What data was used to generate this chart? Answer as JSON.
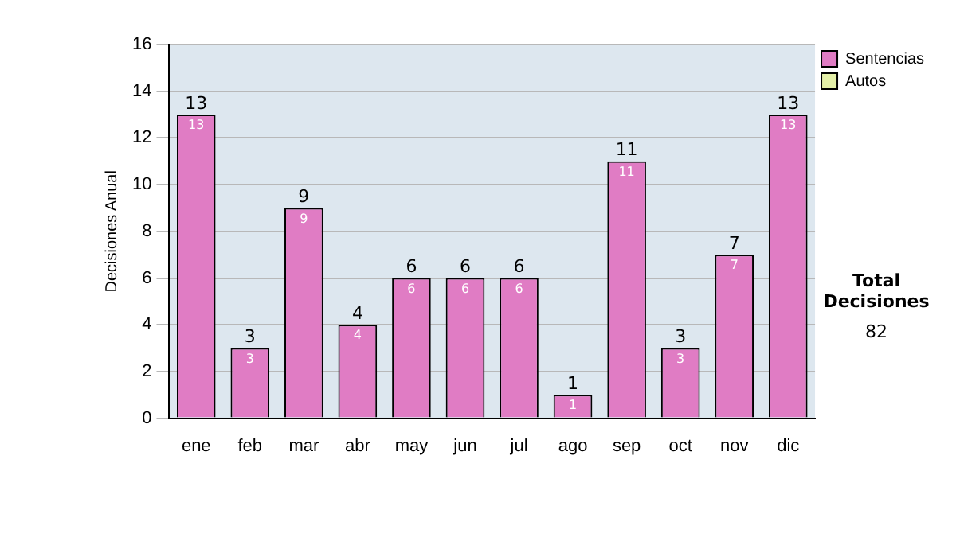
{
  "chart_data": {
    "type": "bar",
    "ylabel": "Decisiones Anual",
    "categories": [
      "ene",
      "feb",
      "mar",
      "abr",
      "may",
      "jun",
      "jul",
      "ago",
      "sep",
      "oct",
      "nov",
      "dic"
    ],
    "series": [
      {
        "name": "Sentencias",
        "color": "#e07cc4",
        "values": [
          13,
          3,
          9,
          4,
          6,
          6,
          6,
          1,
          11,
          3,
          7,
          13
        ]
      },
      {
        "name": "Autos",
        "color": "#e4f0a8",
        "values": [
          null,
          null,
          null,
          null,
          null,
          null,
          null,
          null,
          null,
          null,
          null,
          null
        ]
      }
    ],
    "ylim": [
      0,
      16
    ],
    "yticks": [
      0,
      2,
      4,
      6,
      8,
      10,
      12,
      14,
      16
    ],
    "grid": "y",
    "legend": "right",
    "data_labels": true,
    "annotations": [
      "Total Decisiones",
      "82",
      {
        "text": "13",
        "x": "ene",
        "y": 13
      },
      {
        "text": "3",
        "x": "feb",
        "y": 3
      },
      {
        "text": "9",
        "x": "mar",
        "y": 9
      },
      {
        "text": "4",
        "x": "abr",
        "y": 4
      },
      {
        "text": "6",
        "x": "may",
        "y": 6
      },
      {
        "text": "6",
        "x": "jun",
        "y": 6
      },
      {
        "text": "6",
        "x": "jul",
        "y": 6
      },
      {
        "text": "1",
        "x": "ago",
        "y": 1
      },
      {
        "text": "11",
        "x": "sep",
        "y": 11
      },
      {
        "text": "3",
        "x": "oct",
        "y": 3
      },
      {
        "text": "7",
        "x": "nov",
        "y": 7
      },
      {
        "text": "13",
        "x": "dic",
        "y": 13
      }
    ]
  }
}
